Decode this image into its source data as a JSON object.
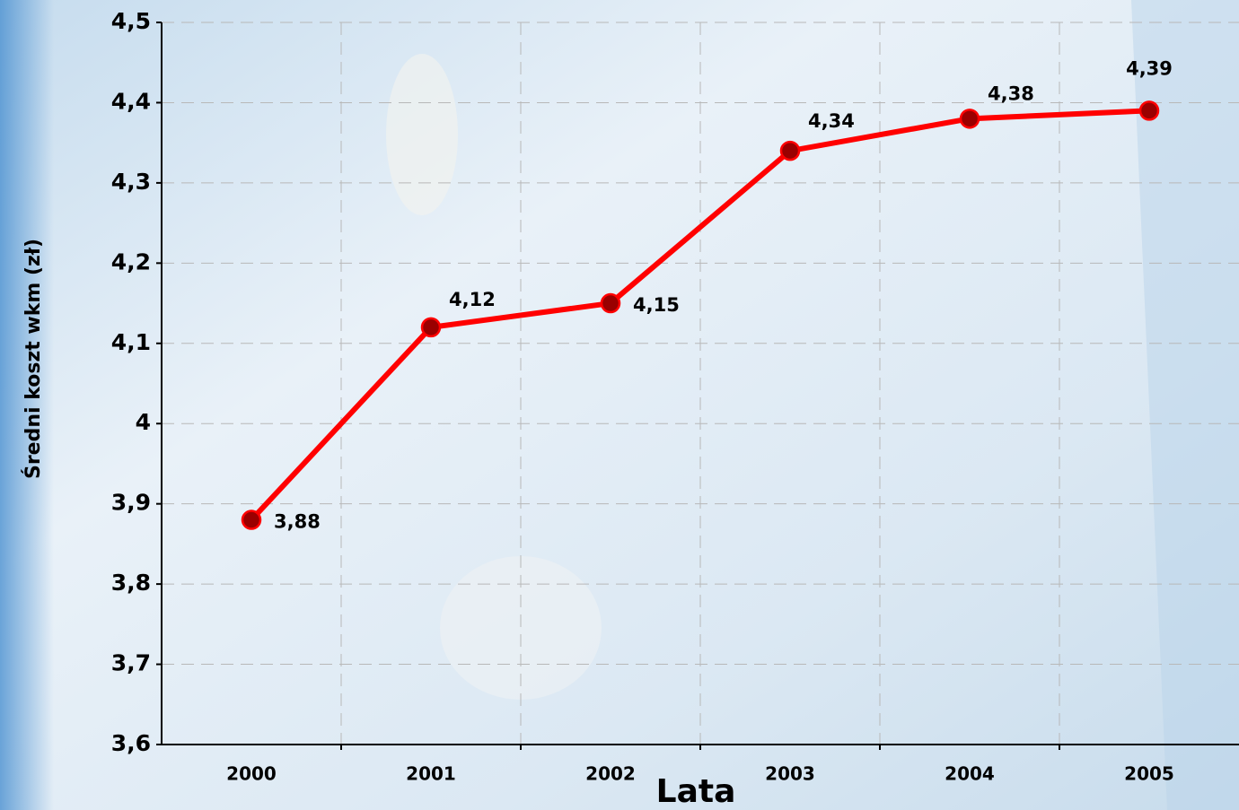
{
  "chart_data": {
    "type": "line",
    "x_label": "Lata",
    "y_label": "Średni koszt wkm (zł)",
    "categories": [
      "2000",
      "2001",
      "2002",
      "2003",
      "2004",
      "2005"
    ],
    "series": [
      {
        "color": "#ff0000",
        "values": [
          3.88,
          4.12,
          4.15,
          4.34,
          4.38,
          4.39
        ],
        "value_labels": [
          "3,88",
          "4,12",
          "4,15",
          "4,34",
          "4,38",
          "4,39"
        ]
      }
    ],
    "ylim": [
      3.6,
      4.5
    ],
    "yticks": [
      {
        "value": 3.6,
        "label": "3,6"
      },
      {
        "value": 3.7,
        "label": "3,7"
      },
      {
        "value": 3.8,
        "label": "3,8"
      },
      {
        "value": 3.9,
        "label": "3,9"
      },
      4,
      {
        "value": 4.1,
        "label": "4,1"
      },
      {
        "value": 4.2,
        "label": "4,2"
      },
      {
        "value": 4.3,
        "label": "4,3"
      },
      {
        "value": 4.4,
        "label": "4,4"
      },
      {
        "value": 4.5,
        "label": "4,5"
      }
    ],
    "grid": true
  }
}
